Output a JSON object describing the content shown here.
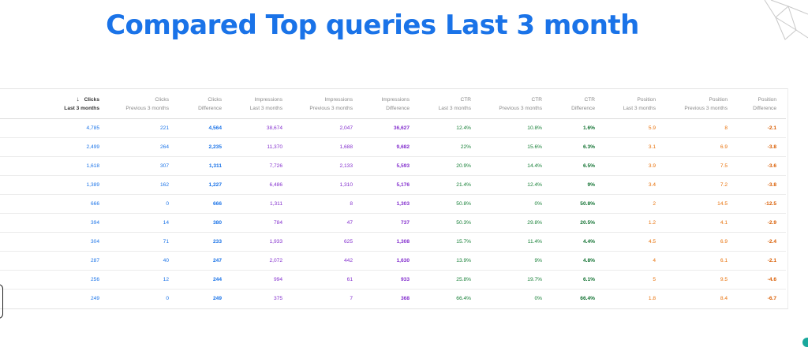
{
  "page": {
    "title": "Compared Top queries Last 3 month"
  },
  "table": {
    "columns": [
      {
        "line1": "Clicks",
        "line2": "Last 3 months",
        "color": "blue",
        "bold": false,
        "sorted": true
      },
      {
        "line1": "Clicks",
        "line2": "Previous 3 months",
        "color": "blue",
        "bold": false,
        "sorted": false
      },
      {
        "line1": "Clicks",
        "line2": "Difference",
        "color": "blue",
        "bold": true,
        "sorted": false
      },
      {
        "line1": "Impressions",
        "line2": "Last 3 months",
        "color": "purple",
        "bold": false,
        "sorted": false
      },
      {
        "line1": "Impressions",
        "line2": "Previous 3 months",
        "color": "purple",
        "bold": false,
        "sorted": false
      },
      {
        "line1": "Impressions",
        "line2": "Difference",
        "color": "purple",
        "bold": true,
        "sorted": false
      },
      {
        "line1": "CTR",
        "line2": "Last 3 months",
        "color": "green",
        "bold": false,
        "sorted": false
      },
      {
        "line1": "CTR",
        "line2": "Previous 3 months",
        "color": "green",
        "bold": false,
        "sorted": false
      },
      {
        "line1": "CTR",
        "line2": "Difference",
        "color": "green",
        "bold": true,
        "sorted": false
      },
      {
        "line1": "Position",
        "line2": "Last 3 months",
        "color": "orange",
        "bold": false,
        "sorted": false
      },
      {
        "line1": "Position",
        "line2": "Previous 3 months",
        "color": "orange",
        "bold": false,
        "sorted": false
      },
      {
        "line1": "Position",
        "line2": "Difference",
        "color": "orange",
        "bold": true,
        "sorted": false
      }
    ],
    "rows": [
      [
        "4,785",
        "221",
        "4,564",
        "38,674",
        "2,047",
        "36,627",
        "12.4%",
        "10.8%",
        "1.6%",
        "5.9",
        "8",
        "-2.1"
      ],
      [
        "2,499",
        "264",
        "2,235",
        "11,370",
        "1,688",
        "9,682",
        "22%",
        "15.6%",
        "6.3%",
        "3.1",
        "6.9",
        "-3.8"
      ],
      [
        "1,618",
        "307",
        "1,311",
        "7,726",
        "2,133",
        "5,593",
        "20.9%",
        "14.4%",
        "6.5%",
        "3.9",
        "7.5",
        "-3.6"
      ],
      [
        "1,389",
        "162",
        "1,227",
        "6,486",
        "1,310",
        "5,176",
        "21.4%",
        "12.4%",
        "9%",
        "3.4",
        "7.2",
        "-3.8"
      ],
      [
        "666",
        "0",
        "666",
        "1,311",
        "8",
        "1,303",
        "50.8%",
        "0%",
        "50.8%",
        "2",
        "14.5",
        "-12.5"
      ],
      [
        "394",
        "14",
        "380",
        "784",
        "47",
        "737",
        "50.3%",
        "29.8%",
        "20.5%",
        "1.2",
        "4.1",
        "-2.9"
      ],
      [
        "304",
        "71",
        "233",
        "1,933",
        "625",
        "1,308",
        "15.7%",
        "11.4%",
        "4.4%",
        "4.5",
        "6.9",
        "-2.4"
      ],
      [
        "287",
        "40",
        "247",
        "2,072",
        "442",
        "1,630",
        "13.9%",
        "9%",
        "4.8%",
        "4",
        "6.1",
        "-2.1"
      ],
      [
        "256",
        "12",
        "244",
        "994",
        "61",
        "933",
        "25.8%",
        "19.7%",
        "6.1%",
        "5",
        "9.5",
        "-4.6"
      ],
      [
        "249",
        "0",
        "249",
        "375",
        "7",
        "368",
        "66.4%",
        "0%",
        "66.4%",
        "1.8",
        "8.4",
        "-6.7"
      ]
    ]
  },
  "colors": {
    "blue": "#1a73e8",
    "purple": "#8430ce",
    "green": "#188038",
    "orange": "#e8710a",
    "title": "#1a73e8"
  },
  "icons": {
    "sort": "arrow-down-icon",
    "decoration": "diamond-outline-icon"
  }
}
